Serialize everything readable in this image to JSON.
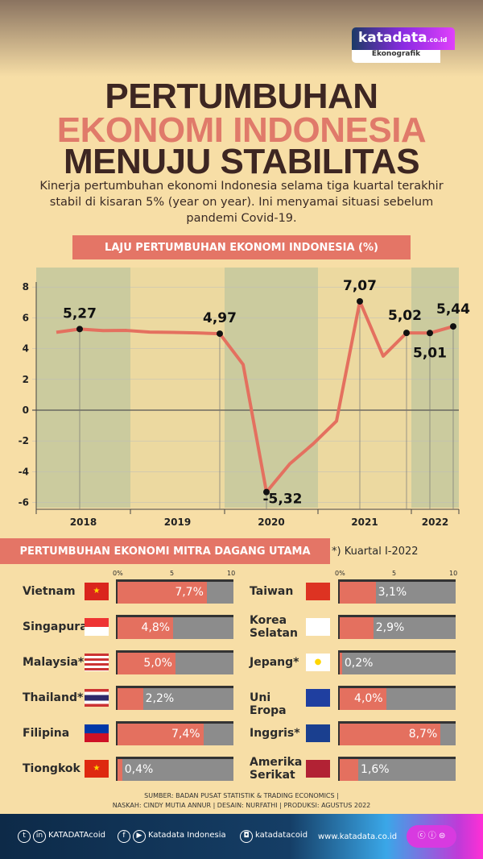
{
  "brand": {
    "logo": "katadata",
    "logo_suffix": ".co.id",
    "section": "Ekonografik"
  },
  "title": {
    "line1": "PERTUMBUHAN",
    "line2": "EKONOMI INDONESIA",
    "line3": "MENUJU STABILITAS"
  },
  "intro": "Kinerja pertumbuhan ekonomi Indonesia selama tiga kuartal terakhir stabil di kisaran 5% (year on year). Ini menyamai situasi sebelum pandemi Covid-19.",
  "chart_data": [
    {
      "type": "line",
      "title": "LAJU PERTUMBUHAN EKONOMI INDONESIA (%)",
      "x": [
        "2018Q1",
        "2018Q2",
        "2018Q3",
        "2018Q4",
        "2019Q1",
        "2019Q2",
        "2019Q3",
        "2019Q4",
        "2020Q1",
        "2020Q2",
        "2020Q3",
        "2020Q4",
        "2021Q1",
        "2021Q2",
        "2021Q3",
        "2021Q4",
        "2022Q1",
        "2022Q2"
      ],
      "values": [
        5.06,
        5.27,
        5.17,
        5.18,
        5.07,
        5.05,
        5.02,
        4.97,
        2.97,
        -5.32,
        -3.49,
        -2.19,
        -0.71,
        7.07,
        3.51,
        5.02,
        5.01,
        5.44
      ],
      "labels": [
        {
          "x": "2018Q2",
          "text": "5,27"
        },
        {
          "x": "2019Q4",
          "text": "4,97"
        },
        {
          "x": "2020Q2",
          "text": "-5,32"
        },
        {
          "x": "2021Q2",
          "text": "7,07"
        },
        {
          "x": "2021Q4",
          "text": "5,02"
        },
        {
          "x": "2022Q1",
          "text": "5,01"
        },
        {
          "x": "2022Q2",
          "text": "5,44"
        }
      ],
      "year_labels": [
        "2018",
        "2019",
        "2020",
        "2021",
        "2022"
      ],
      "yticks": [
        "8",
        "6",
        "4",
        "2",
        "0",
        "-2",
        "-4",
        "-6"
      ],
      "ylim": [
        -6,
        8
      ],
      "grid": true,
      "colors": {
        "line": "#e4705f",
        "band_green": "#cbcb9e",
        "band_yellow": "#ecd9a0"
      }
    },
    {
      "type": "bar",
      "title": "PERTUMBUHAN EKONOMI MITRA DAGANG UTAMA",
      "note": "*) Kuartal I-2022",
      "scale_ticks": [
        "0%",
        "5",
        "10"
      ],
      "xlim": [
        0,
        10
      ],
      "left": [
        {
          "name": "Vietnam",
          "value": 7.7,
          "label": "7,7%",
          "flag": "vietnam-flag"
        },
        {
          "name": "Singapura",
          "value": 4.8,
          "label": "4,8%",
          "flag": "singapore-flag"
        },
        {
          "name": "Malaysia*",
          "value": 5.0,
          "label": "5,0%",
          "flag": "malaysia-flag"
        },
        {
          "name": "Thailand*",
          "value": 2.2,
          "label": "2,2%",
          "flag": "thailand-flag"
        },
        {
          "name": "Filipina",
          "value": 7.4,
          "label": "7,4%",
          "flag": "philippines-flag"
        },
        {
          "name": "Tiongkok",
          "value": 0.4,
          "label": "0,4%",
          "flag": "china-flag"
        }
      ],
      "right": [
        {
          "name": "Taiwan",
          "value": 3.1,
          "label": "3,1%",
          "flag": "taiwan-flag"
        },
        {
          "name": "Korea Selatan",
          "value": 2.9,
          "label": "2,9%",
          "flag": "south-korea-flag"
        },
        {
          "name": "Jepang*",
          "value": 0.2,
          "label": "0,2%",
          "flag": "japan-flag"
        },
        {
          "name": "Uni Eropa",
          "value": 4.0,
          "label": "4,0%",
          "flag": "eu-flag"
        },
        {
          "name": "Inggris*",
          "value": 8.7,
          "label": "8,7%",
          "flag": "uk-flag"
        },
        {
          "name": "Amerika Serikat",
          "value": 1.6,
          "label": "1,6%",
          "flag": "usa-flag"
        }
      ],
      "colors": {
        "fill": "#e4705f",
        "track": "#8c8c8c"
      }
    }
  ],
  "credits": {
    "line1": "SUMBER: BADAN PUSAT STATISTIK & TRADING ECONOMICS |",
    "line2": "NASKAH: CINDY MUTIA ANNUR | DESAIN: NURFATHI | PRODUKSI: AGUSTUS 2022"
  },
  "footer": {
    "twitter_linkedin": "KATADATAcoid",
    "facebook_youtube": "Katadata Indonesia",
    "instagram": "katadatacoid",
    "website": "www.katadata.co.id",
    "license": "cc"
  }
}
